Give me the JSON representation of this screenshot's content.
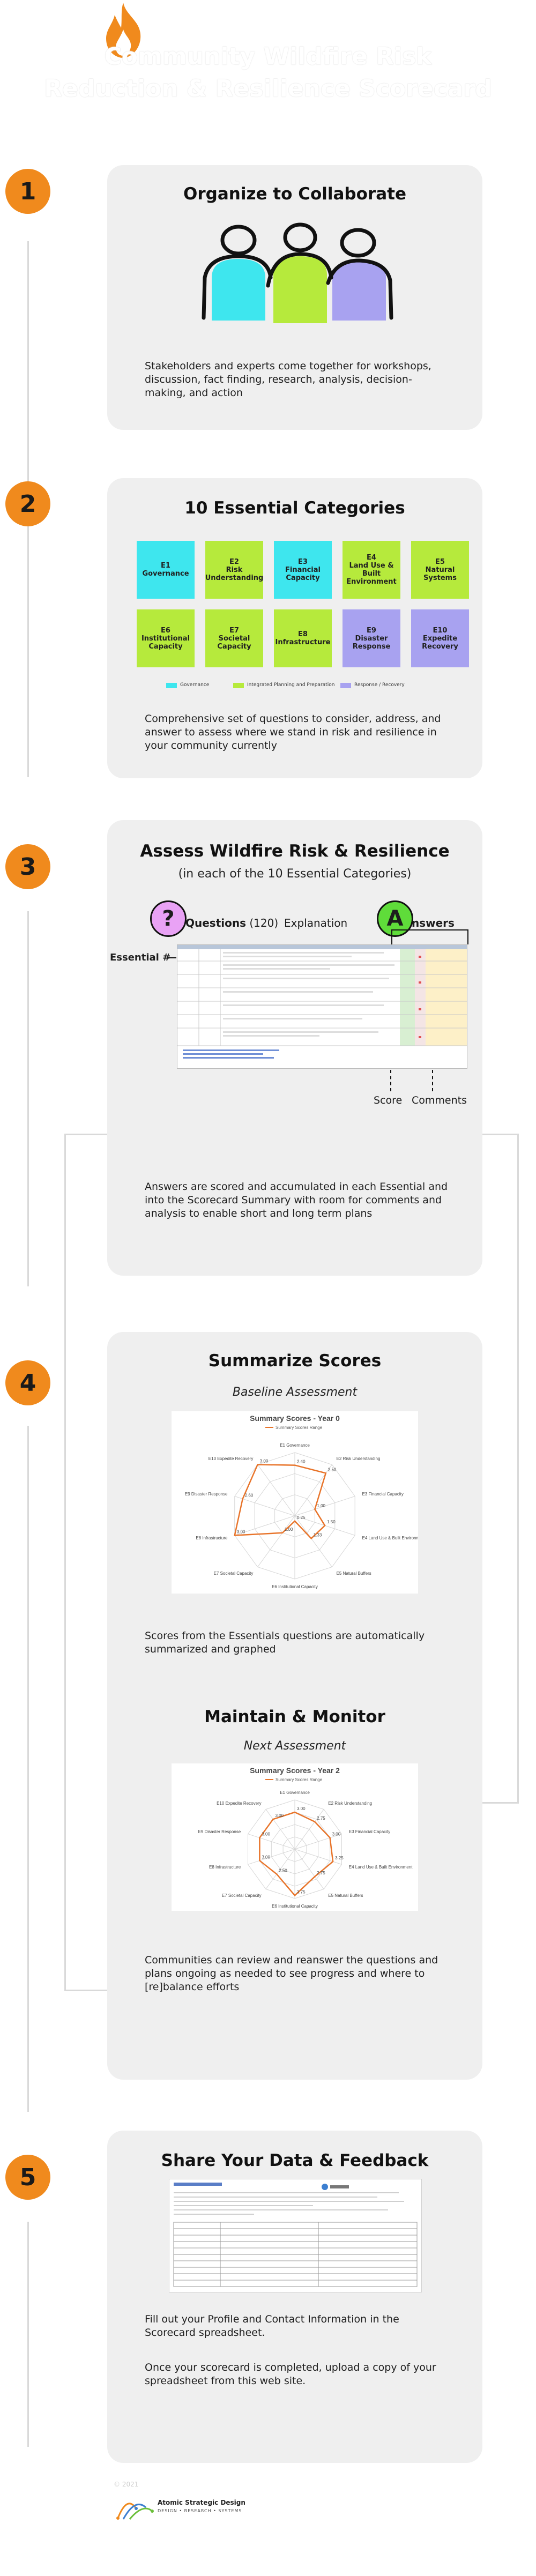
{
  "header": {
    "title_line1": "Community Wildfire Risk",
    "title_line2": "Reduction & Resilience Scorecard"
  },
  "steps": [
    {
      "number": "1",
      "title": "Organize to Collaborate",
      "text": "Stakeholders and experts come together for workshops, discussion, fact finding, research, analysis, decision-making, and action"
    },
    {
      "number": "2",
      "title": "10 Essential Categories",
      "text": "Comprehensive set of questions to consider, address, and answer to assess where we stand in risk and resilience in your community currently"
    },
    {
      "number": "3",
      "title": "Assess Wildfire Risk & Resilience",
      "subtitle": "(in each of the 10 Essential Categories)",
      "text": "Answers are scored and accumulated in each Essential and into the Scorecard Summary with room for comments and analysis to enable short and long term plans"
    },
    {
      "number": "4",
      "title": "Summarize Scores",
      "subtitle": "Baseline Assessment",
      "text": "Scores from the Essentials questions are automatically summarized and graphed",
      "title2": "Maintain & Monitor",
      "subtitle2": "Next Assessment",
      "text2": "Communities can review and reanswer the questions and plans ongoing as needed to see progress and where to [re]balance efforts"
    },
    {
      "number": "5",
      "title": "Share Your Data & Feedback",
      "text": "Fill out your Profile and Contact Information in the Scorecard spreadsheet.",
      "text2": "Once your scorecard is completed, upload a copy of your spreadsheet from this web site."
    }
  ],
  "categories": [
    {
      "code": "E1",
      "name": "Governance",
      "group": "gov"
    },
    {
      "code": "E2",
      "name": "Risk Understanding",
      "group": "plan"
    },
    {
      "code": "E3",
      "name": "Financial Capacity",
      "group": "gov"
    },
    {
      "code": "E4",
      "name": "Land Use & Built Environment",
      "group": "plan"
    },
    {
      "code": "E5",
      "name": "Natural Systems",
      "group": "plan"
    },
    {
      "code": "E6",
      "name": "Institutional Capacity",
      "group": "plan"
    },
    {
      "code": "E7",
      "name": "Societal Capacity",
      "group": "plan"
    },
    {
      "code": "E8",
      "name": "Infrastructure",
      "group": "plan"
    },
    {
      "code": "E9",
      "name": "Disaster Response",
      "group": "resp"
    },
    {
      "code": "E10",
      "name": "Expedite Recovery",
      "group": "resp"
    }
  ],
  "legend": [
    {
      "label": "Governance",
      "color": "#3ee6ee"
    },
    {
      "label": "Integrated Planning and Preparation",
      "color": "#b6ea3c"
    },
    {
      "label": "Response / Recovery",
      "color": "#a8a2f0"
    }
  ],
  "assess_labels": {
    "questions": "Questions",
    "questions_count": "(120)",
    "explanation": "Explanation",
    "answers": "nswers",
    "answers_badge": "A",
    "question_badge": "?",
    "essential": "Essential #",
    "score": "Score",
    "comments": "Comments"
  },
  "colors": {
    "accent_orange": "#f08a1d",
    "card_bg": "#efefef",
    "connector": "#d9d9d9",
    "radar_line": "#e8742a"
  },
  "chart_data": [
    {
      "type": "radar",
      "title": "Summary Scores - Year 0",
      "legend": "Summary Scores Range",
      "categories": [
        "E1 Governance",
        "E2 Risk Understanding",
        "E3 Financial Capacity",
        "E4 Land Use & Built Environment",
        "E5 Natural Buffers",
        "E6 Institutional Capacity",
        "E7 Societal Capacity",
        "E8 Infrastructure",
        "E9 Disaster Response",
        "E10 Expedite Recovery"
      ],
      "values": [
        2.4,
        2.5,
        1.0,
        1.5,
        1.33,
        0.25,
        1.0,
        3.0,
        2.6,
        3.0
      ],
      "value_labels": [
        "2.40",
        "2.50",
        "1.00",
        "1.50",
        "1.33",
        "0.25",
        "1.00",
        "3.00",
        "2.60",
        "3.00"
      ],
      "rmax": 3
    },
    {
      "type": "radar",
      "title": "Summary Scores - Year 2",
      "legend": "Summary Scores Range",
      "categories": [
        "E1 Governance",
        "E2 Risk Understanding",
        "E3 Financial Capacity",
        "E4 Land Use & Built Environment",
        "E5 Natural Buffers",
        "E6 Institutional Capacity",
        "E7 Societal Capacity",
        "E8 Infrastructure",
        "E9 Disaster Response",
        "E10 Expedite Recovery"
      ],
      "values": [
        3.0,
        2.75,
        3.0,
        3.25,
        2.75,
        3.75,
        2.5,
        3.0,
        3.0,
        3.0
      ],
      "value_labels": [
        "3.00",
        "2.75",
        "3.00",
        "3.25",
        "2.75",
        "3.75",
        "2.50",
        "3.00",
        "3.00",
        "3.00"
      ],
      "rmax": 4
    }
  ],
  "footer": {
    "copyright": "© 2021",
    "company": "Atomic Strategic Design",
    "tagline": "DESIGN • RESEARCH • SYSTEMS"
  }
}
